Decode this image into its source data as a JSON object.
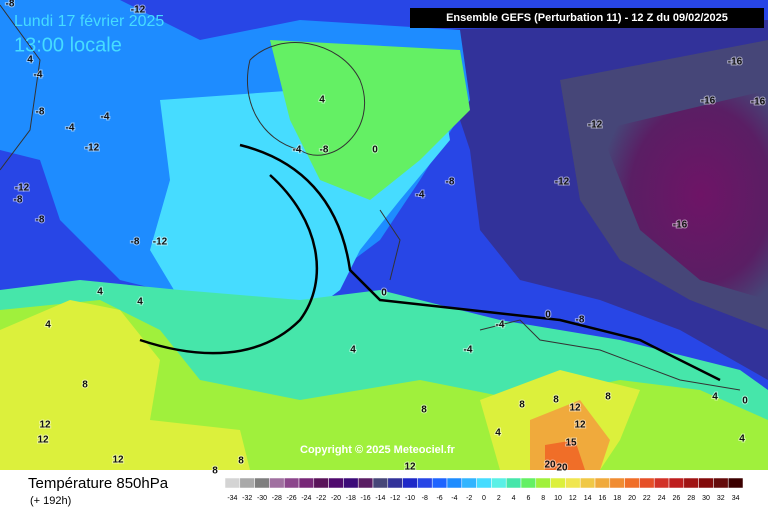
{
  "header": {
    "date": "Lundi 17 février 2025",
    "time": "13:00 locale",
    "model": "Ensemble GEFS (Perturbation 11)  -  12 Z du 09/02/2025"
  },
  "copyright": "Copyright © 2025 Meteociel.fr",
  "footer": {
    "title": "Température 850hPa",
    "lead": "(+ 192h)"
  },
  "legend": {
    "values": [
      -34,
      -32,
      -30,
      -28,
      -26,
      -24,
      -22,
      -20,
      -18,
      -16,
      -14,
      -12,
      -10,
      -8,
      -6,
      -4,
      -2,
      0,
      2,
      4,
      6,
      8,
      10,
      12,
      14,
      16,
      18,
      20,
      22,
      24,
      26,
      28,
      30,
      32,
      34
    ],
    "colors": [
      "#d4d4d4",
      "#a9a9a9",
      "#7e7e7e",
      "#a070a0",
      "#8c468c",
      "#782878",
      "#5a145a",
      "#500a6e",
      "#3c0a78",
      "#5a1e64",
      "#464678",
      "#32329a",
      "#1e28c8",
      "#2846e6",
      "#1e64ff",
      "#1e8cff",
      "#32b4ff",
      "#46dcff",
      "#5af0e6",
      "#46e6aa",
      "#64f064",
      "#a0f03c",
      "#dcf03c",
      "#f0e650",
      "#f0c846",
      "#f0aa3c",
      "#f08c32",
      "#f06e28",
      "#e65028",
      "#d23228",
      "#be1e1e",
      "#a01414",
      "#820a0a",
      "#640a0a",
      "#3c0000"
    ]
  },
  "contour_labels": [
    -8,
    -12,
    4,
    -4,
    -8,
    -12,
    -8,
    -8,
    -8,
    -12,
    4,
    -4,
    -4,
    0,
    -4,
    -8,
    -12,
    -16,
    -16,
    -16,
    -12,
    -12,
    -16,
    -4,
    0,
    -4,
    0,
    -8,
    -8,
    4,
    -4,
    4,
    4,
    4,
    8,
    12,
    12,
    12,
    8,
    8,
    8,
    12,
    4,
    8,
    12,
    15,
    20,
    20,
    4,
    4,
    0,
    8,
    12,
    8
  ]
}
